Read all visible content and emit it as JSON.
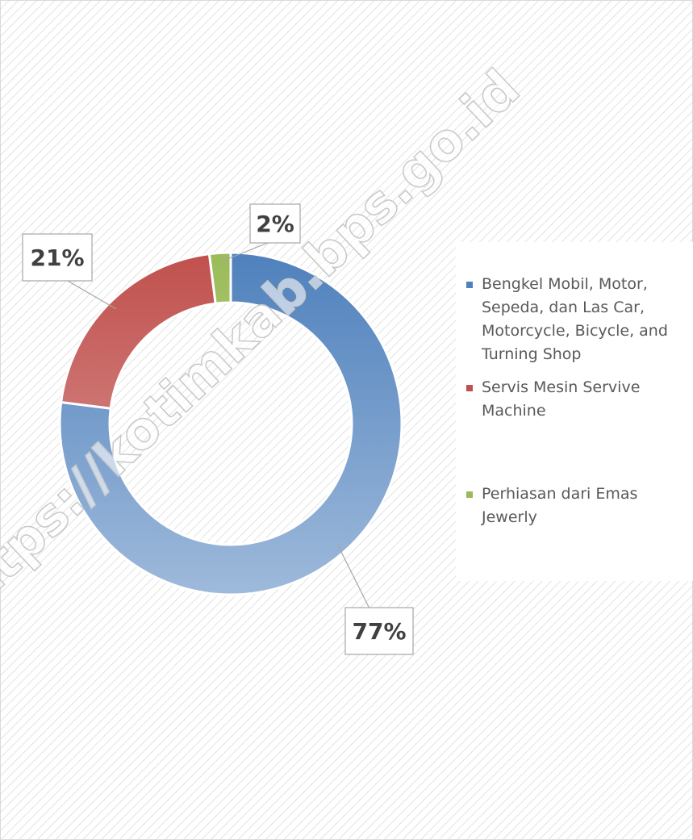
{
  "chart_data": {
    "type": "donut",
    "watermark": "https://kotimkab.bps.go.id",
    "categories": [
      "Bengkel Mobil, Motor, Sepeda, dan Las  Car, Motorcycle, Bicycle, and Turning Shop",
      "Servis Mesin Servive Machine",
      "Perhiasan dari Emas Jewerly"
    ],
    "values": [
      77,
      21,
      2
    ],
    "value_labels": [
      "77%",
      "21%",
      "2%"
    ],
    "colors": [
      "#4f81bd",
      "#c0504d",
      "#9bbb59"
    ],
    "legend": "right"
  }
}
